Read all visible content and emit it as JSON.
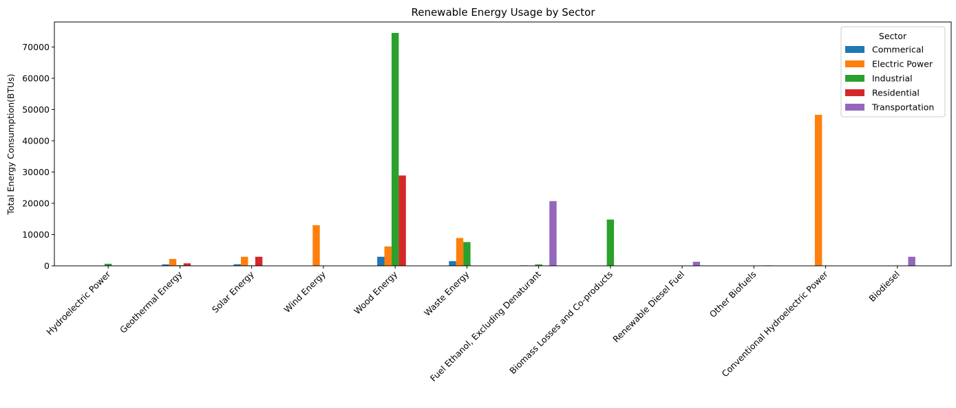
{
  "chart_data": {
    "type": "bar",
    "title": "Renewable Energy Usage by Sector",
    "xlabel": "",
    "ylabel": "Total Energy Consumption(BTUs)",
    "ylim": [
      0,
      78000
    ],
    "yticks": [
      0,
      10000,
      20000,
      30000,
      40000,
      50000,
      60000,
      70000
    ],
    "grid": false,
    "legend": {
      "title": "Sector",
      "placement": "top-right"
    },
    "categories": [
      "Hydroelectric Power",
      "Geothermal Energy",
      "Solar Energy",
      "Wind Energy",
      "Wood Energy",
      "Waste Energy",
      "Fuel Ethanol, Excluding Denaturant",
      "Biomass Losses and Co-products",
      "Renewable Diesel Fuel",
      "Other Biofuels",
      "Conventional Hydroelectric Power",
      "Biodiesel"
    ],
    "series": [
      {
        "name": "Commerical",
        "color": "#1f77b4",
        "values": [
          0,
          450,
          500,
          0,
          2900,
          1500,
          150,
          0,
          0,
          0,
          0,
          0
        ]
      },
      {
        "name": "Electric Power",
        "color": "#ff7f0e",
        "values": [
          0,
          2200,
          2900,
          13000,
          6200,
          8900,
          0,
          0,
          0,
          0,
          48300,
          0
        ]
      },
      {
        "name": "Industrial",
        "color": "#2ca02c",
        "values": [
          650,
          200,
          150,
          0,
          74500,
          7600,
          450,
          14800,
          0,
          0,
          0,
          0
        ]
      },
      {
        "name": "Residential",
        "color": "#d62728",
        "values": [
          0,
          800,
          2900,
          0,
          28900,
          0,
          0,
          0,
          0,
          0,
          0,
          0
        ]
      },
      {
        "name": "Transportation",
        "color": "#9467bd",
        "values": [
          0,
          0,
          0,
          0,
          0,
          0,
          20700,
          0,
          1300,
          150,
          0,
          2900
        ]
      }
    ]
  }
}
